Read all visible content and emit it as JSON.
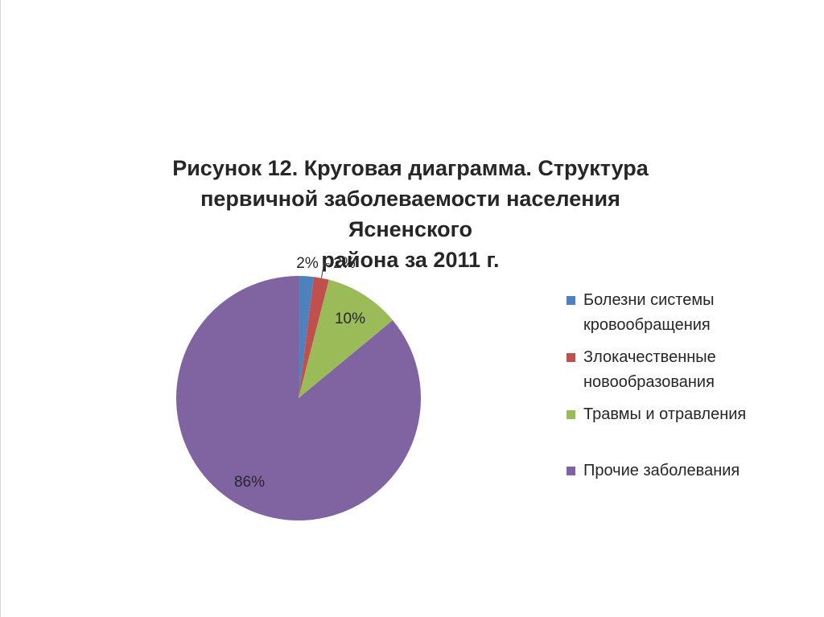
{
  "chart_data": {
    "type": "pie",
    "title_lines": [
      "Рисунок 12. Круговая диаграмма. Структура",
      "первичной заболеваемости населения Ясненского",
      "района за 2011 г."
    ],
    "slices": [
      {
        "label_lines": [
          "Болезни системы",
          "кровообращения"
        ],
        "value": 2,
        "data_label": "2%",
        "color": "#4f81bd"
      },
      {
        "label_lines": [
          "Злокачественные",
          "новообразования"
        ],
        "value": 2,
        "data_label": "2%",
        "color": "#c0504d"
      },
      {
        "label_lines": [
          "Травмы и отравления"
        ],
        "value": 10,
        "data_label": "10%",
        "color": "#9bbb59"
      },
      {
        "label_lines": [
          "Прочие заболевания"
        ],
        "value": 86,
        "data_label": "86%",
        "color": "#8064a2"
      }
    ],
    "legend_position": "right"
  }
}
